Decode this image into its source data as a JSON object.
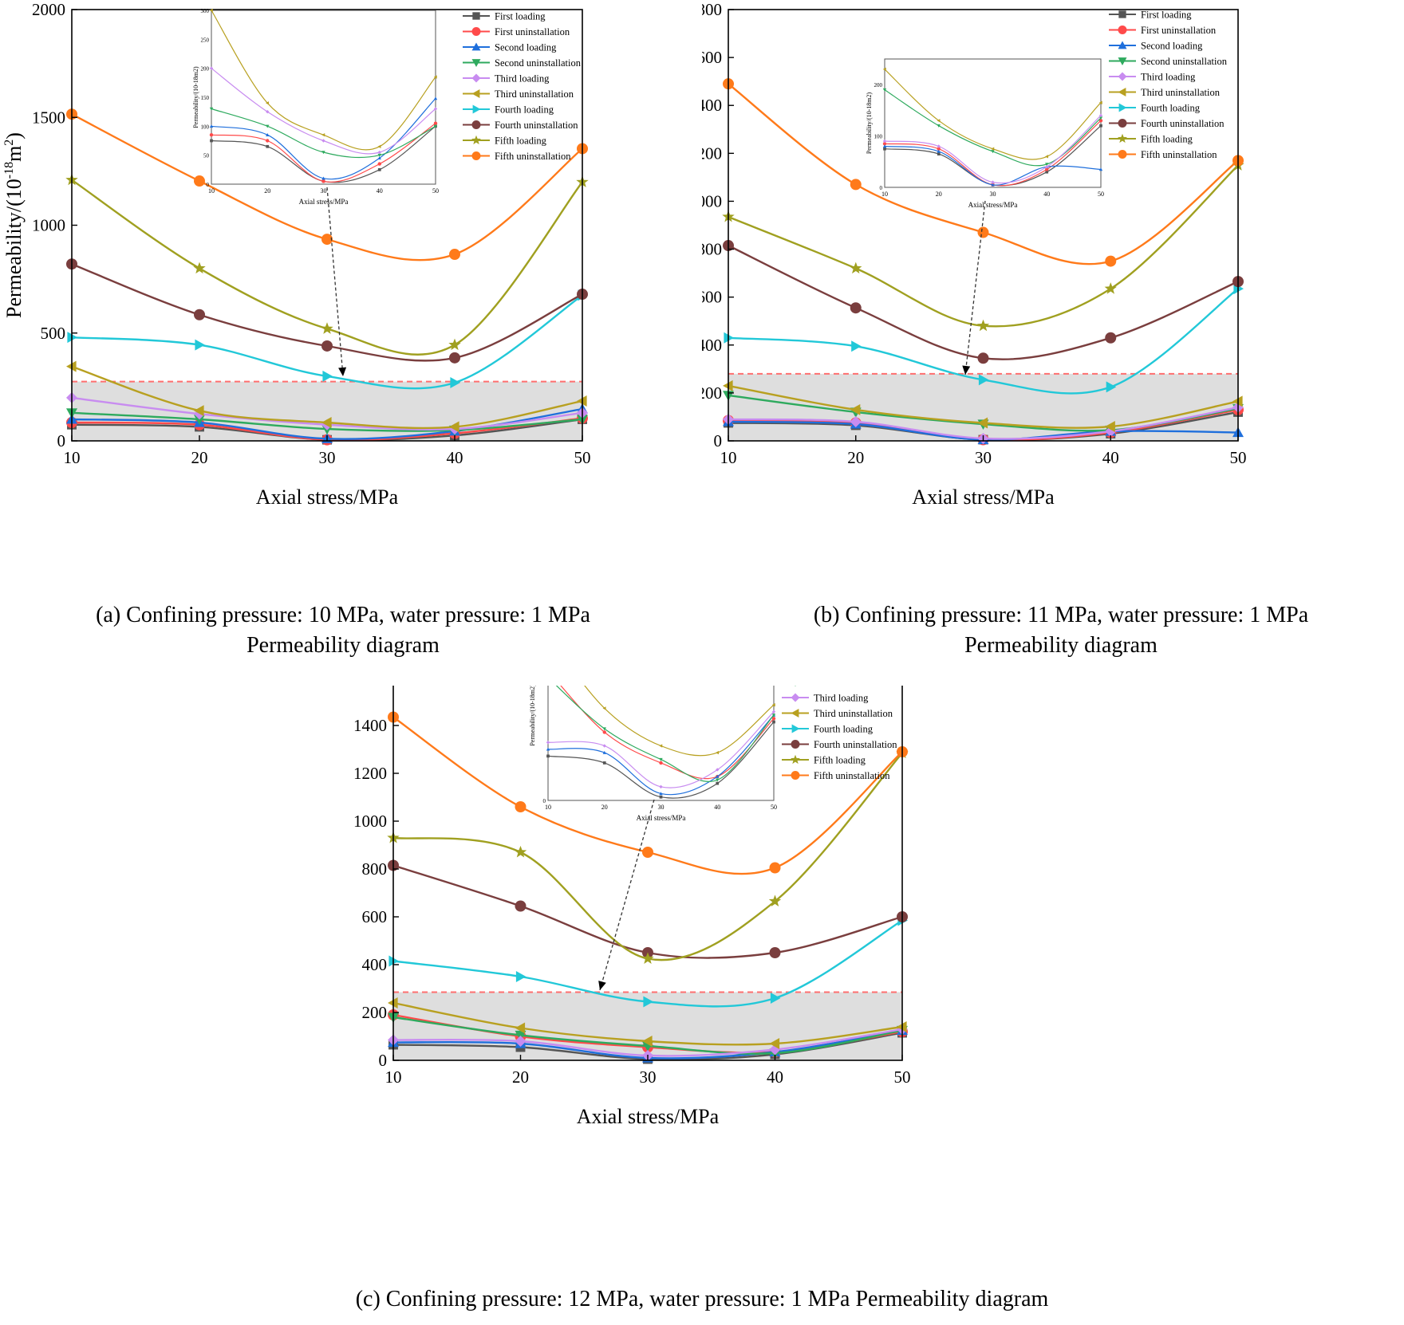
{
  "legend": [
    "First loading",
    "First uninstallation",
    "Second loading",
    "Second uninstallation",
    "Third loading",
    "Third uninstallation",
    "Fourth loading",
    "Fourth uninstallation",
    "Fifth loading",
    "Fifth uninstallation"
  ],
  "series_style": {
    "colors": [
      "#555555",
      "#ff4a4a",
      "#1f6fdc",
      "#2eaa5e",
      "#c88cf0",
      "#b8a020",
      "#22c8d8",
      "#7a3e3e",
      "#a0a020",
      "#ff7a1a"
    ],
    "markers": [
      "square",
      "circle",
      "triangle-up",
      "triangle-down",
      "diamond",
      "triangle-left",
      "triangle-right",
      "circle",
      "star",
      "circle"
    ]
  },
  "shade": {
    "fill": "#dedede",
    "border": "#ff6f6f"
  },
  "chart_data": [
    {
      "type": "line",
      "panel": "a",
      "caption": [
        "(a) Confining pressure: 10 MPa, water pressure: 1 MPa",
        "Permeability diagram"
      ],
      "xlabel": "Axial stress/MPa",
      "ylabel": "Permeability/(10",
      "ylabel_exp": "-18",
      "ylabel_unit": "m",
      "ylabel_sq": "2",
      "ylabel_close": ")",
      "x": [
        10,
        20,
        30,
        40,
        50
      ],
      "xticks": [
        "10",
        "20",
        "30",
        "40",
        "50"
      ],
      "ylim": [
        0,
        2000
      ],
      "yticks": [
        "0",
        "500",
        "1000",
        "1500",
        "2000"
      ],
      "yticks_values": [
        0,
        500,
        1000,
        1500,
        2000
      ],
      "shade_top": 275,
      "series": [
        {
          "name": "First loading",
          "values": [
            75,
            65,
            5,
            25,
            100
          ]
        },
        {
          "name": "First uninstallation",
          "values": [
            85,
            75,
            5,
            35,
            105
          ]
        },
        {
          "name": "Second loading",
          "values": [
            100,
            85,
            10,
            45,
            148
          ]
        },
        {
          "name": "Second uninstallation",
          "values": [
            130,
            100,
            55,
            50,
            100
          ]
        },
        {
          "name": "Third loading",
          "values": [
            200,
            125,
            75,
            55,
            130
          ]
        },
        {
          "name": "Third uninstallation",
          "values": [
            345,
            140,
            85,
            65,
            185
          ]
        },
        {
          "name": "Fourth loading",
          "values": [
            480,
            445,
            300,
            270,
            675
          ]
        },
        {
          "name": "Fourth uninstallation",
          "values": [
            820,
            585,
            440,
            385,
            680
          ]
        },
        {
          "name": "Fifth loading",
          "values": [
            1210,
            800,
            520,
            445,
            1200
          ]
        },
        {
          "name": "Fifth uninstallation",
          "values": [
            1515,
            1205,
            935,
            865,
            1355
          ]
        }
      ],
      "inset": {
        "xlabel": "Axial stress/MPa",
        "ylabel": "Permeability/(10-18m2)",
        "xticks": [
          "10",
          "20",
          "30",
          "40",
          "50"
        ],
        "yticks": [
          "0",
          "50",
          "100",
          "150",
          "200",
          "250",
          "300"
        ],
        "ylim": [
          0,
          300
        ]
      }
    },
    {
      "type": "line",
      "panel": "b",
      "caption": [
        "(b) Confining pressure: 11 MPa, water pressure: 1 MPa",
        "Permeability diagram"
      ],
      "xlabel": "Axial stress/MPa",
      "ylabel": "Permeability/(10",
      "ylabel_exp": "-18",
      "ylabel_unit": "m",
      "ylabel_sq": "2",
      "ylabel_close": ")",
      "x": [
        10,
        20,
        30,
        40,
        50
      ],
      "xticks": [
        "10",
        "20",
        "30",
        "40",
        "50"
      ],
      "ylim": [
        0,
        1800
      ],
      "yticks": [
        "0",
        "200",
        "400",
        "600",
        "800",
        "1000",
        "1200",
        "1400",
        "1600",
        "1800"
      ],
      "yticks_values": [
        0,
        200,
        400,
        600,
        800,
        1000,
        1200,
        1400,
        1600,
        1800
      ],
      "shade_top": 280,
      "series": [
        {
          "name": "First loading",
          "values": [
            75,
            65,
            5,
            30,
            120
          ]
        },
        {
          "name": "First uninstallation",
          "values": [
            85,
            75,
            5,
            35,
            130
          ]
        },
        {
          "name": "Second loading",
          "values": [
            80,
            70,
            5,
            40,
            35
          ]
        },
        {
          "name": "Second uninstallation",
          "values": [
            190,
            120,
            70,
            45,
            135
          ]
        },
        {
          "name": "Third loading",
          "values": [
            90,
            80,
            10,
            40,
            140
          ]
        },
        {
          "name": "Third uninstallation",
          "values": [
            230,
            130,
            75,
            60,
            165
          ]
        },
        {
          "name": "Fourth loading",
          "values": [
            430,
            395,
            255,
            225,
            635
          ]
        },
        {
          "name": "Fourth uninstallation",
          "values": [
            815,
            555,
            345,
            430,
            665
          ]
        },
        {
          "name": "Fifth loading",
          "values": [
            935,
            720,
            480,
            635,
            1150
          ]
        },
        {
          "name": "Fifth uninstallation",
          "values": [
            1490,
            1070,
            870,
            750,
            1170
          ]
        }
      ],
      "inset": {
        "xlabel": "Axial stress/MPa",
        "ylabel": "Permeability/(10-18m2)",
        "xticks": [
          "10",
          "20",
          "30",
          "40",
          "50"
        ],
        "yticks": [
          "0",
          "100",
          "200"
        ],
        "ylim": [
          0,
          250
        ]
      }
    },
    {
      "type": "line",
      "panel": "c",
      "caption": [
        "(c) Confining pressure: 12 MPa, water pressure: 1 MPa Permeability diagram"
      ],
      "xlabel": "Axial stress/MPa",
      "ylabel": "Permeability/(10",
      "ylabel_exp": "-18",
      "ylabel_unit": "m",
      "ylabel_sq": "2",
      "ylabel_close": ")",
      "x": [
        10,
        20,
        30,
        40,
        50
      ],
      "xticks": [
        "10",
        "20",
        "30",
        "40",
        "50"
      ],
      "ylim": [
        0,
        1800
      ],
      "yticks": [
        "0",
        "200",
        "400",
        "600",
        "800",
        "1000",
        "1200",
        "1400",
        "1600",
        "1800"
      ],
      "yticks_values": [
        0,
        200,
        400,
        600,
        800,
        1000,
        1200,
        1400,
        1600,
        1800
      ],
      "shade_top": 285,
      "series": [
        {
          "name": "First loading",
          "values": [
            65,
            55,
            5,
            25,
            115
          ]
        },
        {
          "name": "First uninstallation",
          "values": [
            190,
            100,
            55,
            35,
            120
          ]
        },
        {
          "name": "Second loading",
          "values": [
            75,
            70,
            10,
            35,
            125
          ]
        },
        {
          "name": "Second uninstallation",
          "values": [
            180,
            105,
            60,
            30,
            125
          ]
        },
        {
          "name": "Third loading",
          "values": [
            85,
            80,
            20,
            45,
            130
          ]
        },
        {
          "name": "Third uninstallation",
          "values": [
            240,
            135,
            80,
            70,
            140
          ]
        },
        {
          "name": "Fourth loading",
          "values": [
            415,
            350,
            245,
            260,
            585
          ]
        },
        {
          "name": "Fourth uninstallation",
          "values": [
            815,
            645,
            450,
            450,
            600
          ]
        },
        {
          "name": "Fifth loading",
          "values": [
            930,
            870,
            425,
            665,
            1285
          ]
        },
        {
          "name": "Fifth uninstallation",
          "values": [
            1435,
            1060,
            870,
            805,
            1290
          ]
        }
      ],
      "inset": {
        "xlabel": "Axial stress/MPa",
        "ylabel": "Permeability/(10-18m2)",
        "xticks": [
          "10",
          "20",
          "30",
          "40",
          "50"
        ],
        "yticks": [
          "0",
          "200"
        ],
        "ylim": [
          0,
          250
        ]
      }
    }
  ]
}
